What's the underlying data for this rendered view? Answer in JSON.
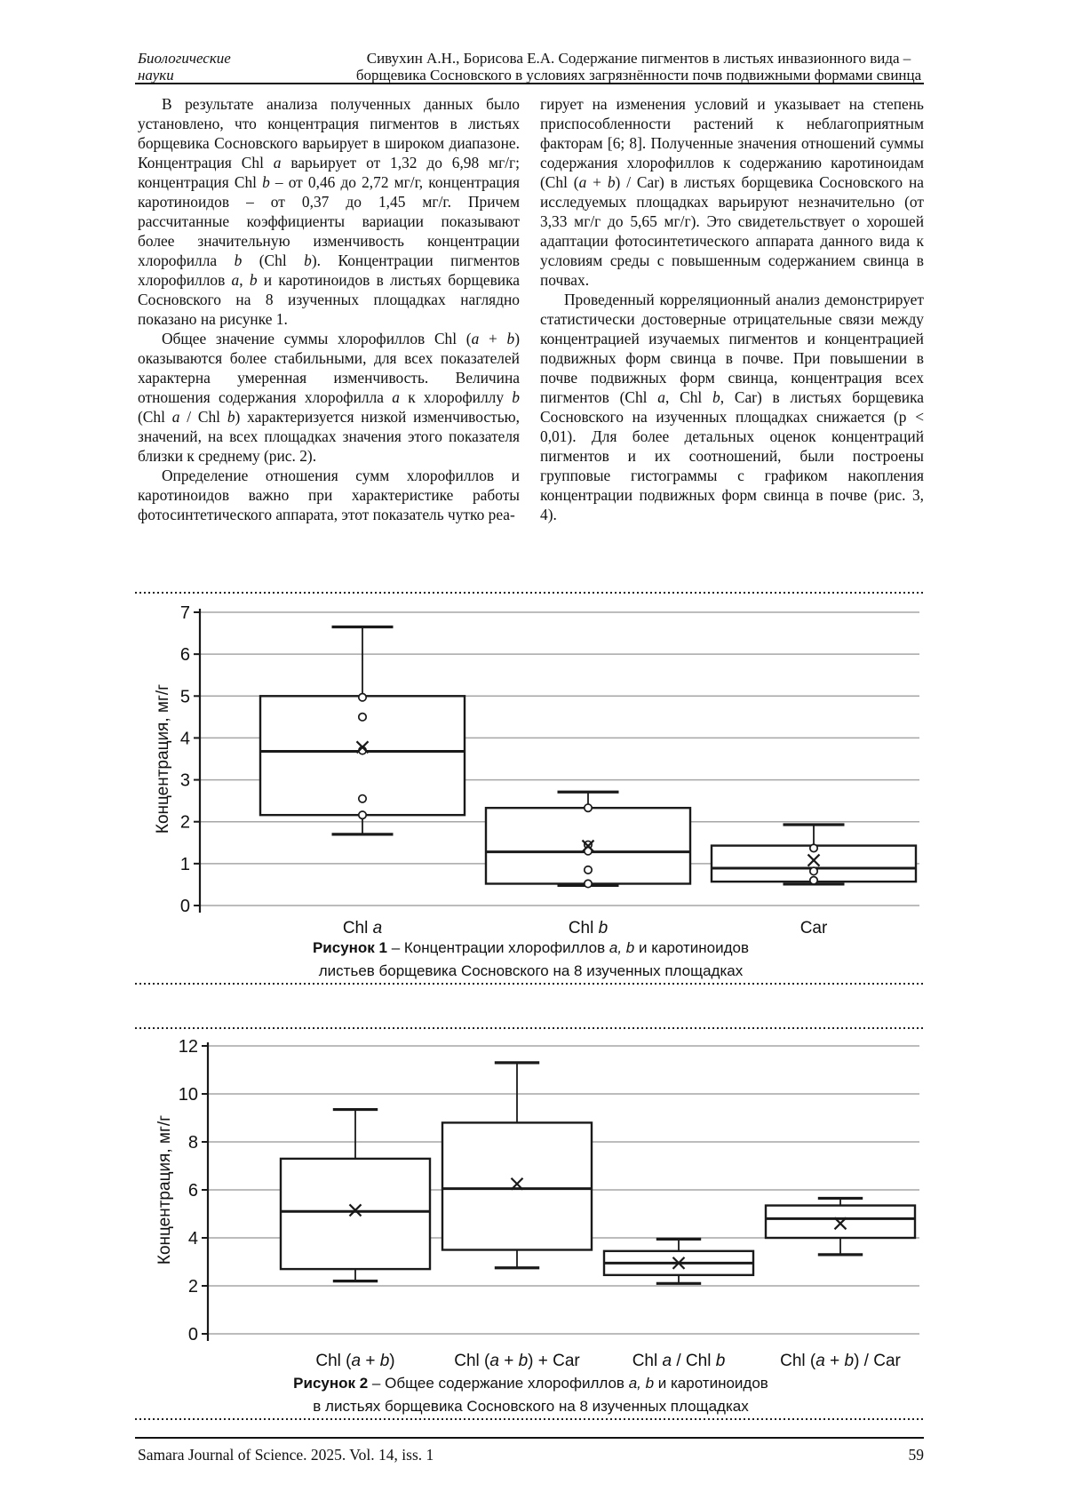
{
  "page": {
    "header": {
      "section_line1": "Биологические",
      "section_line2": "науки",
      "title_line1": "Сивухин А.Н., Борисова Е.А. Содержание пигментов в листьях инвазионного вида –",
      "title_line2": "борщевика Сосновского в условиях загрязнённости почв подвижными формами свинца"
    },
    "columns": {
      "left": [
        [
          "В результате анализа полученных данных было установлено, что концентрация пигментов в листьях борщевика Сосновского варьирует в широком диапазоне. Концентрация Chl ",
          {
            "i": "a"
          },
          " варьирует от 1,32 до 6,98 мг/г; концентрация Chl ",
          {
            "i": "b"
          },
          " – от 0,46 до 2,72 мг/г, концентрация каротиноидов – от 0,37 до 1,45 мг/г. Причем рассчитанные коэффициенты вариации показывают более значительную изменчивость концентрации хлорофилла ",
          {
            "i": "b"
          },
          " (Chl ",
          {
            "i": "b"
          },
          "). Концентрации пигментов хлорофиллов ",
          {
            "i": "a"
          },
          ", ",
          {
            "i": "b"
          },
          " и каротиноидов в листьях борщевика Сосновского на 8 изученных площадках наглядно показано на рисунке 1."
        ],
        [
          "Общее значение суммы хлорофиллов Chl (",
          {
            "i": "a"
          },
          " + ",
          {
            "i": "b"
          },
          ") оказываются более стабильными, для всех показателей характерна умеренная изменчивость. Величина отношения содержания хлорофилла ",
          {
            "i": "a"
          },
          " к хлорофиллу ",
          {
            "i": "b"
          },
          " (Chl ",
          {
            "i": "a"
          },
          " / Chl ",
          {
            "i": "b"
          },
          ") характеризуется низкой изменчивостью, значений, на всех площадках значения этого показателя близки к среднему (рис. 2)."
        ],
        [
          "Определение отношения сумм хлорофиллов и каротиноидов важно при характеристике работы фотосинтетического аппарата, этот показатель чутко реа-"
        ]
      ],
      "right": [
        [
          "гирует на изменения условий и указывает на степень приспособленности растений к неблагоприятным факторам [6; 8]. Полученные значения отношений суммы содержания хлорофиллов к содержанию каротиноидам (Chl (",
          {
            "i": "a"
          },
          " + ",
          {
            "i": "b"
          },
          ") / Car) в листьях борщевика Сосновского на исследуемых площадках варьируют незначительно (от 3,33 мг/г до 5,65 мг/г). Это свидетельствует о хорошей адаптации фотосинтетического аппарата данного вида к условиям среды с повышенным содержанием свинца в почвах."
        ],
        [
          "Проведенный корреляционный анализ демонстрирует статистически достоверные отрицательные связи между концентрацией изучаемых пигментов и концентрацией подвижных форм свинца в почве. При повышении в почве подвижных форм свинца, концентрация всех пигментов (Chl ",
          {
            "i": "a"
          },
          ", Chl ",
          {
            "i": "b"
          },
          ", Car) в листьях борщевика Сосновского на изученных площадках снижается (p < 0,01). Для более детальных оценок концентраций пигментов и их соотношений, были построены групповые гистограммы с графиком накопления концентрации подвижных форм свинца в почве (рис. 3, 4)."
        ]
      ]
    },
    "figures": [
      {
        "caption_line1": [
          {
            "b": "Рисунок 1"
          },
          " – Концентрации хлорофиллов ",
          {
            "i": "a, b"
          },
          " и каротиноидов"
        ],
        "caption_line2": [
          "листьев борщевика Сосновского на 8 изученных площадках"
        ]
      },
      {
        "caption_line1": [
          {
            "b": "Рисунок 2"
          },
          " – Общее содержание хлорофиллов ",
          {
            "i": "a, b"
          },
          " и каротиноидов"
        ],
        "caption_line2": [
          "в листьях борщевика Сосновского на 8 изученных площадках"
        ]
      }
    ],
    "footer": {
      "journal": "Samara Journal of Science. 2025. Vol. 14, iss. 1",
      "page_number": "59"
    }
  },
  "chart_data": [
    {
      "type": "box",
      "title": "",
      "ylabel": "Концентрация,  мг/г",
      "xlabel": "",
      "ylim": [
        0,
        7
      ],
      "ytick_step": 1,
      "grid": true,
      "categories": [
        "Chl a",
        "Chl b",
        "Car"
      ],
      "categories_rich": [
        [
          "Chl ",
          {
            "i": "a"
          }
        ],
        [
          "Chl ",
          {
            "i": "b"
          }
        ],
        [
          "Car"
        ]
      ],
      "series": [
        {
          "label": "Chl a",
          "whisker_low": 1.7,
          "q1": 2.16,
          "median": 3.68,
          "q3": 5.0,
          "whisker_high": 6.65,
          "mean": 3.78,
          "points": [
            4.97,
            4.5,
            3.7,
            2.55,
            2.16
          ]
        },
        {
          "label": "Chl b",
          "whisker_low": 0.48,
          "q1": 0.52,
          "median": 1.28,
          "q3": 2.33,
          "whisker_high": 2.71,
          "mean": 1.42,
          "points": [
            2.33,
            1.45,
            1.3,
            0.85,
            0.52
          ]
        },
        {
          "label": "Car",
          "whisker_low": 0.51,
          "q1": 0.57,
          "median": 0.89,
          "q3": 1.43,
          "whisker_high": 1.93,
          "mean": 1.08,
          "points": [
            1.37,
            0.82,
            0.6
          ]
        }
      ]
    },
    {
      "type": "box",
      "title": "",
      "ylabel": "Концентрация, мг/г",
      "xlabel": "",
      "ylim": [
        0,
        12
      ],
      "ytick_step": 2,
      "grid": true,
      "categories": [
        "Chl (a + b)",
        "Chl (a + b) + Car",
        "Chl a / Chl b",
        "Chl (a + b) / Car"
      ],
      "categories_rich": [
        [
          "Chl (",
          {
            "i": "a"
          },
          " + ",
          {
            "i": "b"
          },
          ")"
        ],
        [
          "Chl (",
          {
            "i": "a"
          },
          " + ",
          {
            "i": "b"
          },
          ") + Car"
        ],
        [
          "Chl ",
          {
            "i": "a"
          },
          " / Chl ",
          {
            "i": "b"
          }
        ],
        [
          "Chl (",
          {
            "i": "a"
          },
          " + ",
          {
            "i": "b"
          },
          ") / Car"
        ]
      ],
      "series": [
        {
          "label": "Chl (a + b)",
          "whisker_low": 2.2,
          "q1": 2.7,
          "median": 5.1,
          "q3": 7.3,
          "whisker_high": 9.35,
          "mean": 5.15
        },
        {
          "label": "Chl (a + b) + Car",
          "whisker_low": 2.75,
          "q1": 3.5,
          "median": 6.05,
          "q3": 8.8,
          "whisker_high": 11.3,
          "mean": 6.25
        },
        {
          "label": "Chl a / Chl b",
          "whisker_low": 2.1,
          "q1": 2.45,
          "median": 2.95,
          "q3": 3.45,
          "whisker_high": 3.95,
          "mean": 2.95
        },
        {
          "label": "Chl (a + b) / Car",
          "whisker_low": 3.3,
          "q1": 4.0,
          "median": 4.8,
          "q3": 5.35,
          "whisker_high": 5.65,
          "mean": 4.6
        }
      ]
    }
  ]
}
